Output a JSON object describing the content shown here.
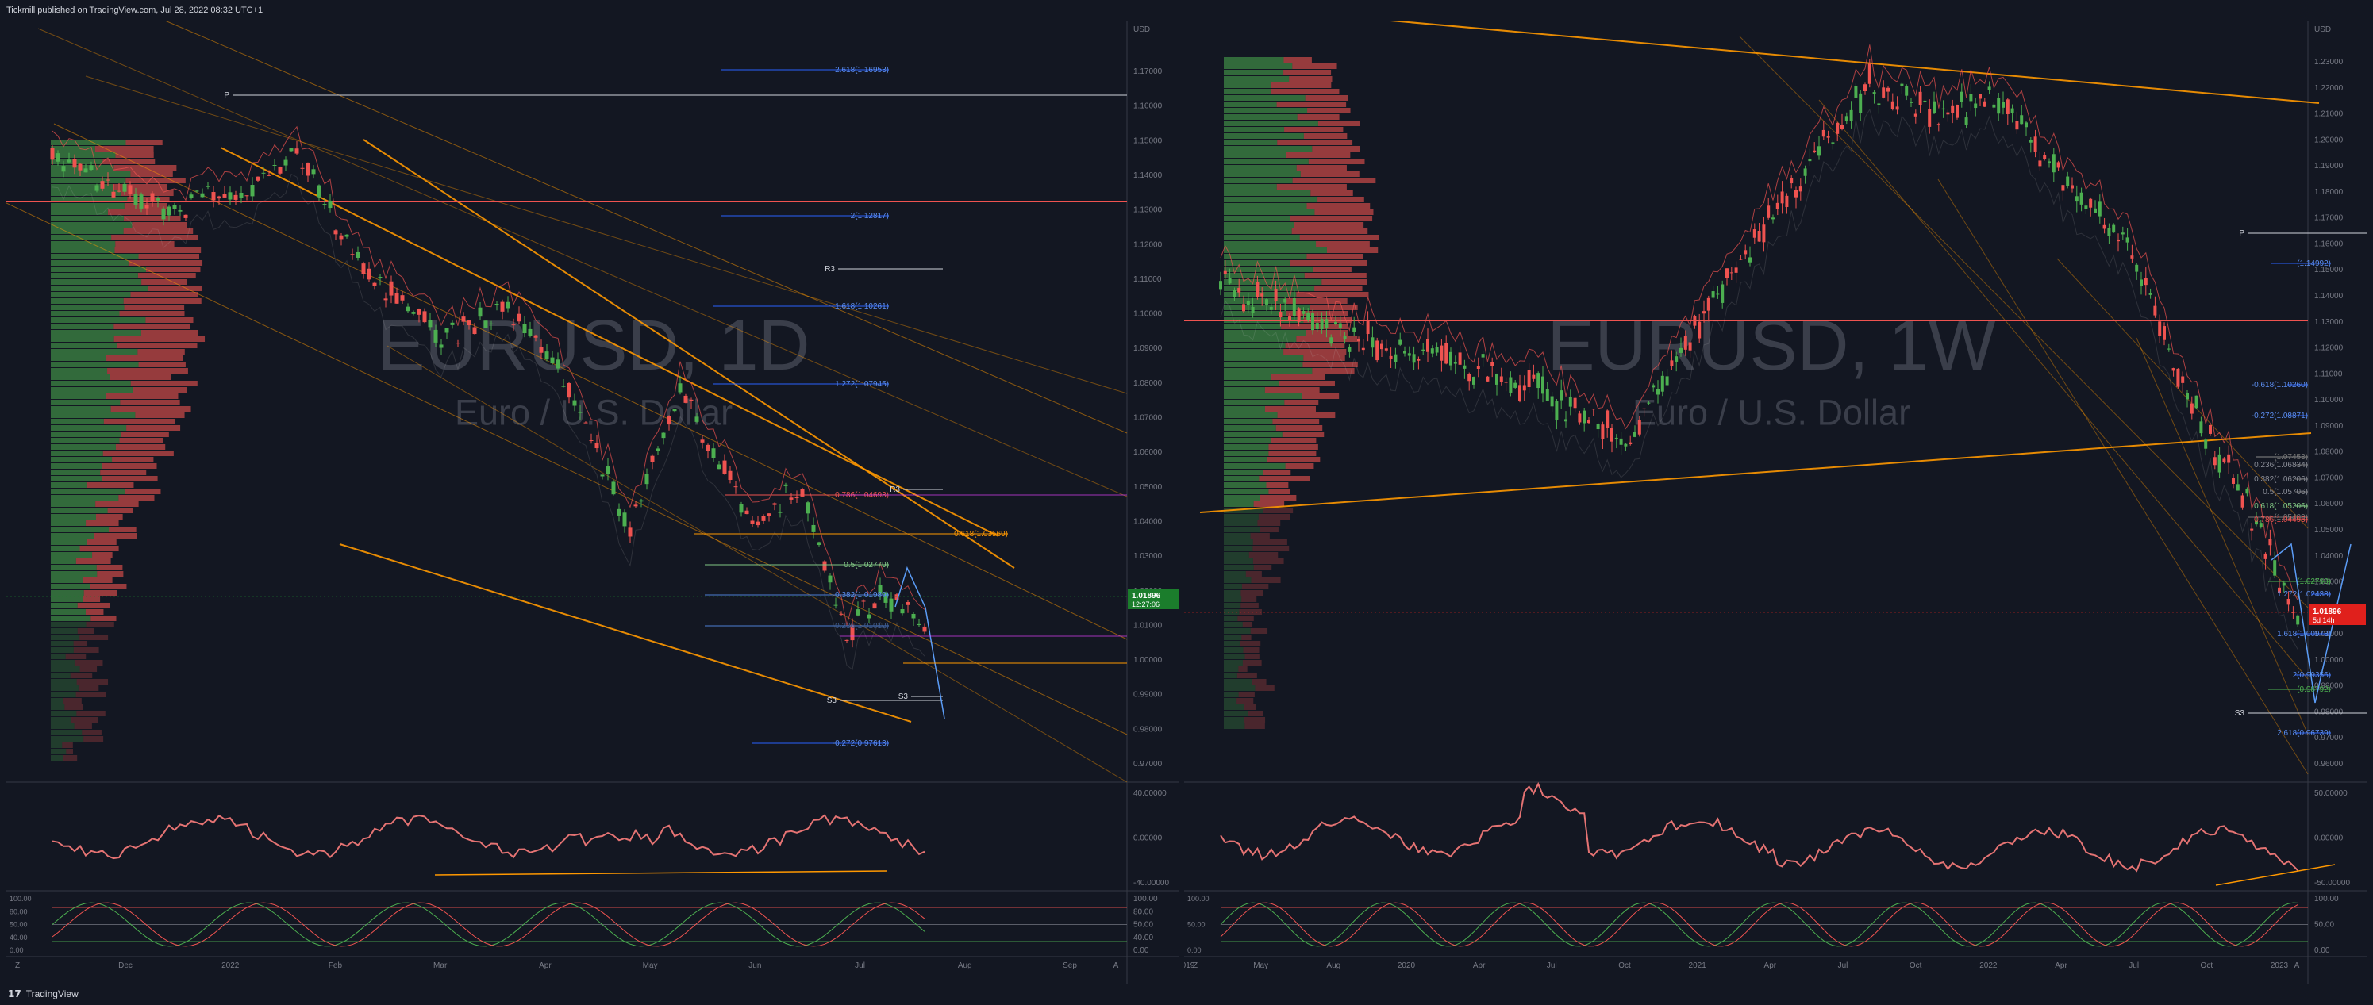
{
  "header": {
    "published_text": "Tickmill published on TradingView.com, Jul 28, 2022 08:32 UTC+1"
  },
  "footer": {
    "brand": "TradingView"
  },
  "colors": {
    "bg": "#131722",
    "up": "#26a69a",
    "up_green": "#4caf50",
    "down": "#ef5350",
    "orange": "#ff9800",
    "fib_blue": "#2962ff",
    "price_tag_left": "#1b7d2c",
    "price_tag_right": "#e0201c"
  },
  "charts": [
    {
      "id": "left",
      "symbol_watermark": "EURUSD, 1D",
      "description_watermark": "Euro / U.S. Dollar",
      "currency": "USD",
      "price_axis": [
        "1.17000",
        "1.16000",
        "1.15000",
        "1.14000",
        "1.13000",
        "1.12000",
        "1.11000",
        "1.10000",
        "1.09000",
        "1.08000",
        "1.07000",
        "1.06000",
        "1.05000",
        "1.04000",
        "1.03000",
        "1.02000",
        "1.01000",
        "1.00000",
        "0.99000",
        "0.98000",
        "0.97000"
      ],
      "time_axis": [
        "Dec",
        "2022",
        "Feb",
        "Mar",
        "Apr",
        "May",
        "Jun",
        "Jul",
        "Aug",
        "Sep"
      ],
      "last_price": "1.01896",
      "countdown": "12:27:06",
      "fib_labels": [
        "2.618(1.16953)",
        "2(1.12817)",
        "1.618(1.10261)",
        "1.272(1.07945)",
        "0.786(1.04693)",
        "0.618(1.03569)",
        "0.5(1.02779)",
        "0.382(1.01989)",
        "0.236(1.01012)",
        "-0.272(0.97613)"
      ],
      "pivot_labels": [
        "P",
        "R3",
        "R3",
        "S3",
        "S3"
      ],
      "rsi_axis": [
        "40.00000",
        "0.00000",
        "-40.00000"
      ],
      "stoch_axis": [
        "100.00",
        "80.00",
        "50.00",
        "40.00",
        "0.00"
      ],
      "corner_labels": [
        "Z",
        "A"
      ]
    },
    {
      "id": "right",
      "symbol_watermark": "EURUSD, 1W",
      "description_watermark": "Euro / U.S. Dollar",
      "currency": "USD",
      "price_axis": [
        "1.23000",
        "1.22000",
        "1.21000",
        "1.20000",
        "1.19000",
        "1.18000",
        "1.17000",
        "1.16000",
        "1.15000",
        "1.14000",
        "1.13000",
        "1.12000",
        "1.11000",
        "1.10000",
        "1.09000",
        "1.08000",
        "1.07000",
        "1.06000",
        "1.05000",
        "1.04000",
        "1.03000",
        "1.02000",
        "1.01000",
        "1.00000",
        "0.99000",
        "0.98000",
        "0.97000",
        "0.96000"
      ],
      "time_axis": [
        "019",
        "May",
        "Aug",
        "2020",
        "Apr",
        "Jul",
        "Oct",
        "2021",
        "Apr",
        "Jul",
        "Oct",
        "2022",
        "Apr",
        "Jul",
        "Oct",
        "2023"
      ],
      "last_price": "1.01896",
      "countdown": "5d 14h",
      "fib_labels": [
        "(1.14992)",
        "-0.618(1.10260)",
        "-0.272(1.08871)",
        "(1.07453)",
        "0.236(1.06834)",
        "0.382(1.06206)",
        "0.5(1.05706)",
        "0.618(1.05206)",
        "(1.05409)",
        "0.786(1.04495)",
        "(1.02793)",
        "1.272(1.02438)",
        "1.618(1.00973)",
        "2(0.99356)",
        "(0.98792)",
        "2.618(0.96739)"
      ],
      "pivot_labels": [
        "P",
        "S3"
      ],
      "rsi_axis": [
        "50.00000",
        "0.00000",
        "-50.00000"
      ],
      "stoch_axis": [
        "100.00",
        "50.00",
        "0.00"
      ],
      "corner_labels": [
        "Z",
        "A"
      ]
    }
  ]
}
